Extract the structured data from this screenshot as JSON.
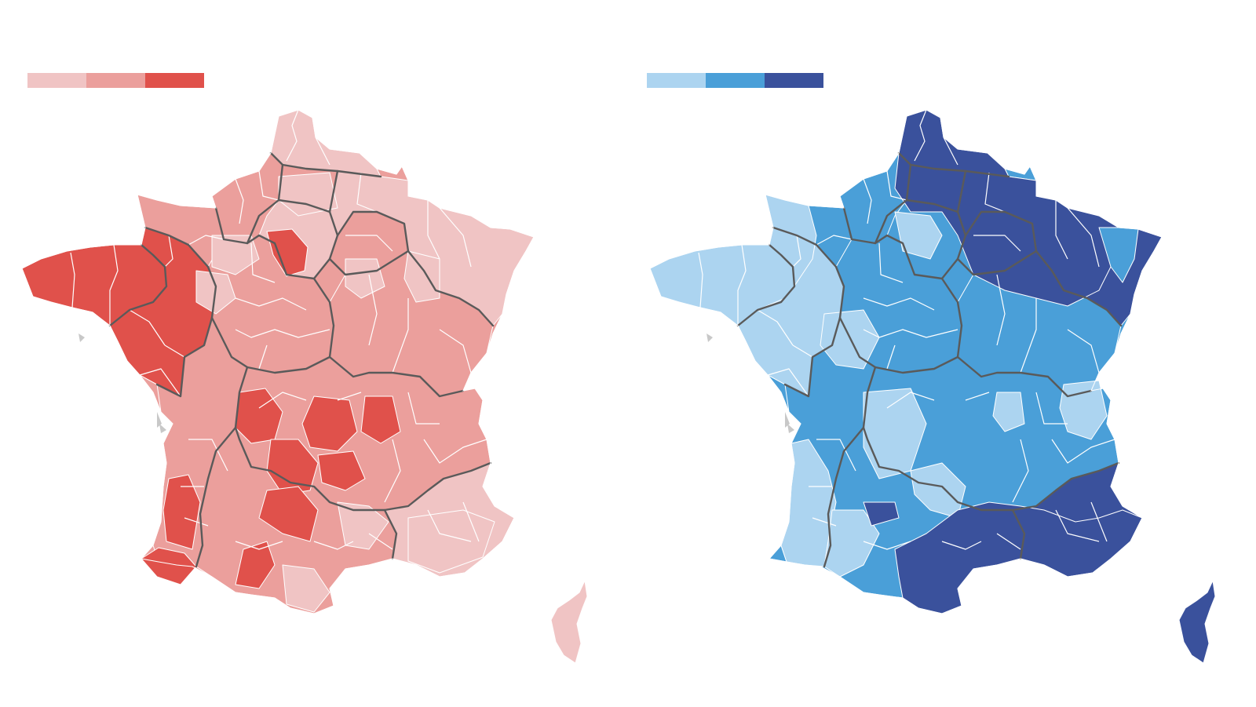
{
  "maps": [
    {
      "id": "left",
      "legend": [
        "#f0c4c4",
        "#eb9f9c",
        "#e0514b"
      ],
      "corsica_color": "#f0c4c4",
      "mainland_base": "#eb9f9c",
      "palette": {
        "light": "#f0c4c4",
        "mid": "#eb9f9c",
        "dark": "#e0514b"
      },
      "department_lines": "#ffffff",
      "region_lines": "#5a5a5a"
    },
    {
      "id": "right",
      "legend": [
        "#acd4f0",
        "#4a9fd8",
        "#3a519c"
      ],
      "corsica_color": "#3a519c",
      "mainland_base": "#4a9fd8",
      "palette": {
        "light": "#acd4f0",
        "mid": "#4a9fd8",
        "dark": "#3a519c"
      },
      "department_lines": "#ffffff",
      "region_lines": "#5a5a5a"
    }
  ]
}
